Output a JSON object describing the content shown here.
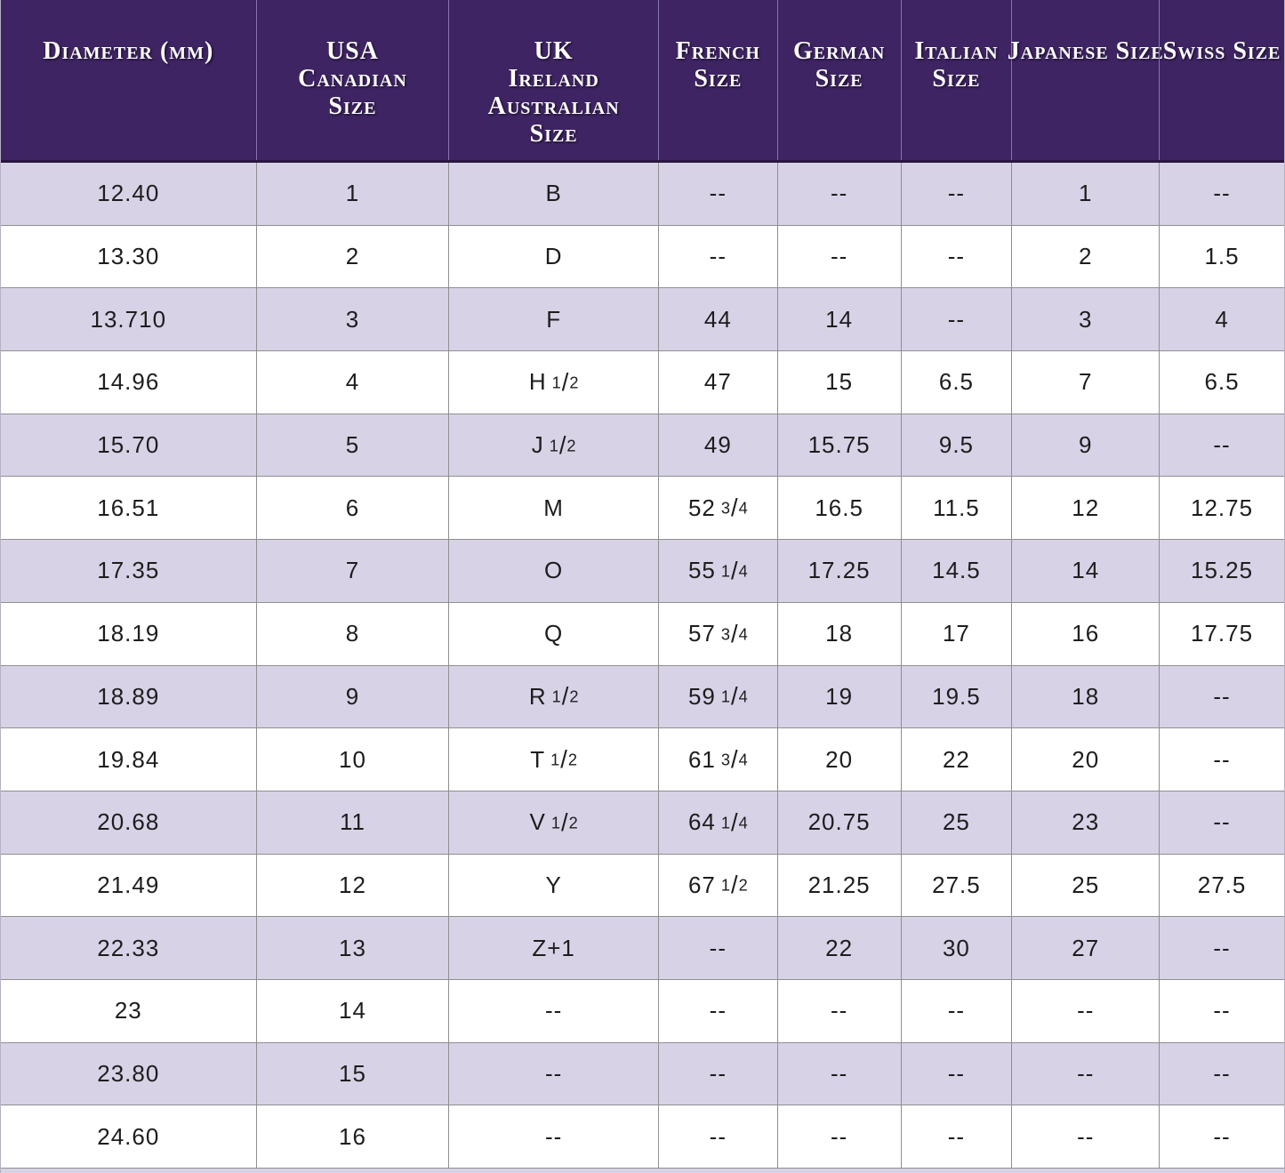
{
  "chart_data": {
    "type": "table",
    "columns": [
      {
        "id": "diameter-mm",
        "lines": [
          "Diameter (mm)"
        ]
      },
      {
        "id": "usa-canadian",
        "lines": [
          "USA",
          "Canadian",
          "Size"
        ]
      },
      {
        "id": "uk-ireland-australian",
        "lines": [
          "UK",
          "Ireland",
          "Australian",
          "Size"
        ]
      },
      {
        "id": "french",
        "lines": [
          "French",
          "Size"
        ]
      },
      {
        "id": "german",
        "lines": [
          "German",
          "Size"
        ]
      },
      {
        "id": "italian",
        "lines": [
          "Italian",
          "Size"
        ]
      },
      {
        "id": "japanese",
        "lines": [
          "Japanese Size"
        ]
      },
      {
        "id": "swiss",
        "lines": [
          "Swiss Size"
        ]
      }
    ],
    "rows": [
      [
        "12.40",
        "1",
        "B",
        "--",
        "--",
        "--",
        "1",
        "--"
      ],
      [
        "13.30",
        "2",
        "D",
        "--",
        "--",
        "--",
        "2",
        "1.5"
      ],
      [
        "13.710",
        "3",
        "F",
        "44",
        "14",
        "--",
        "3",
        "4"
      ],
      [
        "14.96",
        "4",
        "H 1/2",
        "47",
        "15",
        "6.5",
        "7",
        "6.5"
      ],
      [
        "15.70",
        "5",
        "J 1/2",
        "49",
        "15.75",
        "9.5",
        "9",
        "--"
      ],
      [
        "16.51",
        "6",
        "M",
        "52 3/4",
        "16.5",
        "11.5",
        "12",
        "12.75"
      ],
      [
        "17.35",
        "7",
        "O",
        "55 1/4",
        "17.25",
        "14.5",
        "14",
        "15.25"
      ],
      [
        "18.19",
        "8",
        "Q",
        "57 3/4",
        "18",
        "17",
        "16",
        "17.75"
      ],
      [
        "18.89",
        "9",
        "R 1/2",
        "59 1/4",
        "19",
        "19.5",
        "18",
        "--"
      ],
      [
        "19.84",
        "10",
        "T 1/2",
        "61 3/4",
        "20",
        "22",
        "20",
        "--"
      ],
      [
        "20.68",
        "11",
        "V 1/2",
        "64 1/4",
        "20.75",
        "25",
        "23",
        "--"
      ],
      [
        "21.49",
        "12",
        "Y",
        "67 1/2",
        "21.25",
        "27.5",
        "25",
        "27.5"
      ],
      [
        "22.33",
        "13",
        "Z+1",
        "--",
        "22",
        "30",
        "27",
        "--"
      ],
      [
        "23",
        "14",
        "--",
        "--",
        "--",
        "--",
        "--",
        "--"
      ],
      [
        "23.80",
        "15",
        "--",
        "--",
        "--",
        "--",
        "--",
        "--"
      ],
      [
        "24.60",
        "16",
        "--",
        "--",
        "--",
        "--",
        "--",
        "--"
      ]
    ],
    "empty_marker": "--",
    "layout": {
      "grid": true,
      "alternating_rows": true,
      "first_data_row_shaded": true
    }
  },
  "colors": {
    "header_bg": "#3e2462",
    "header_bottom_edge": "#2b1640",
    "header_separator": "#8673b2",
    "header_text": "#ffffff",
    "row_alt_bg": "#d8d2e7",
    "row_bg": "#ffffff",
    "grid_line": "#8f8f8f",
    "cell_text": "#1d1d1d"
  }
}
